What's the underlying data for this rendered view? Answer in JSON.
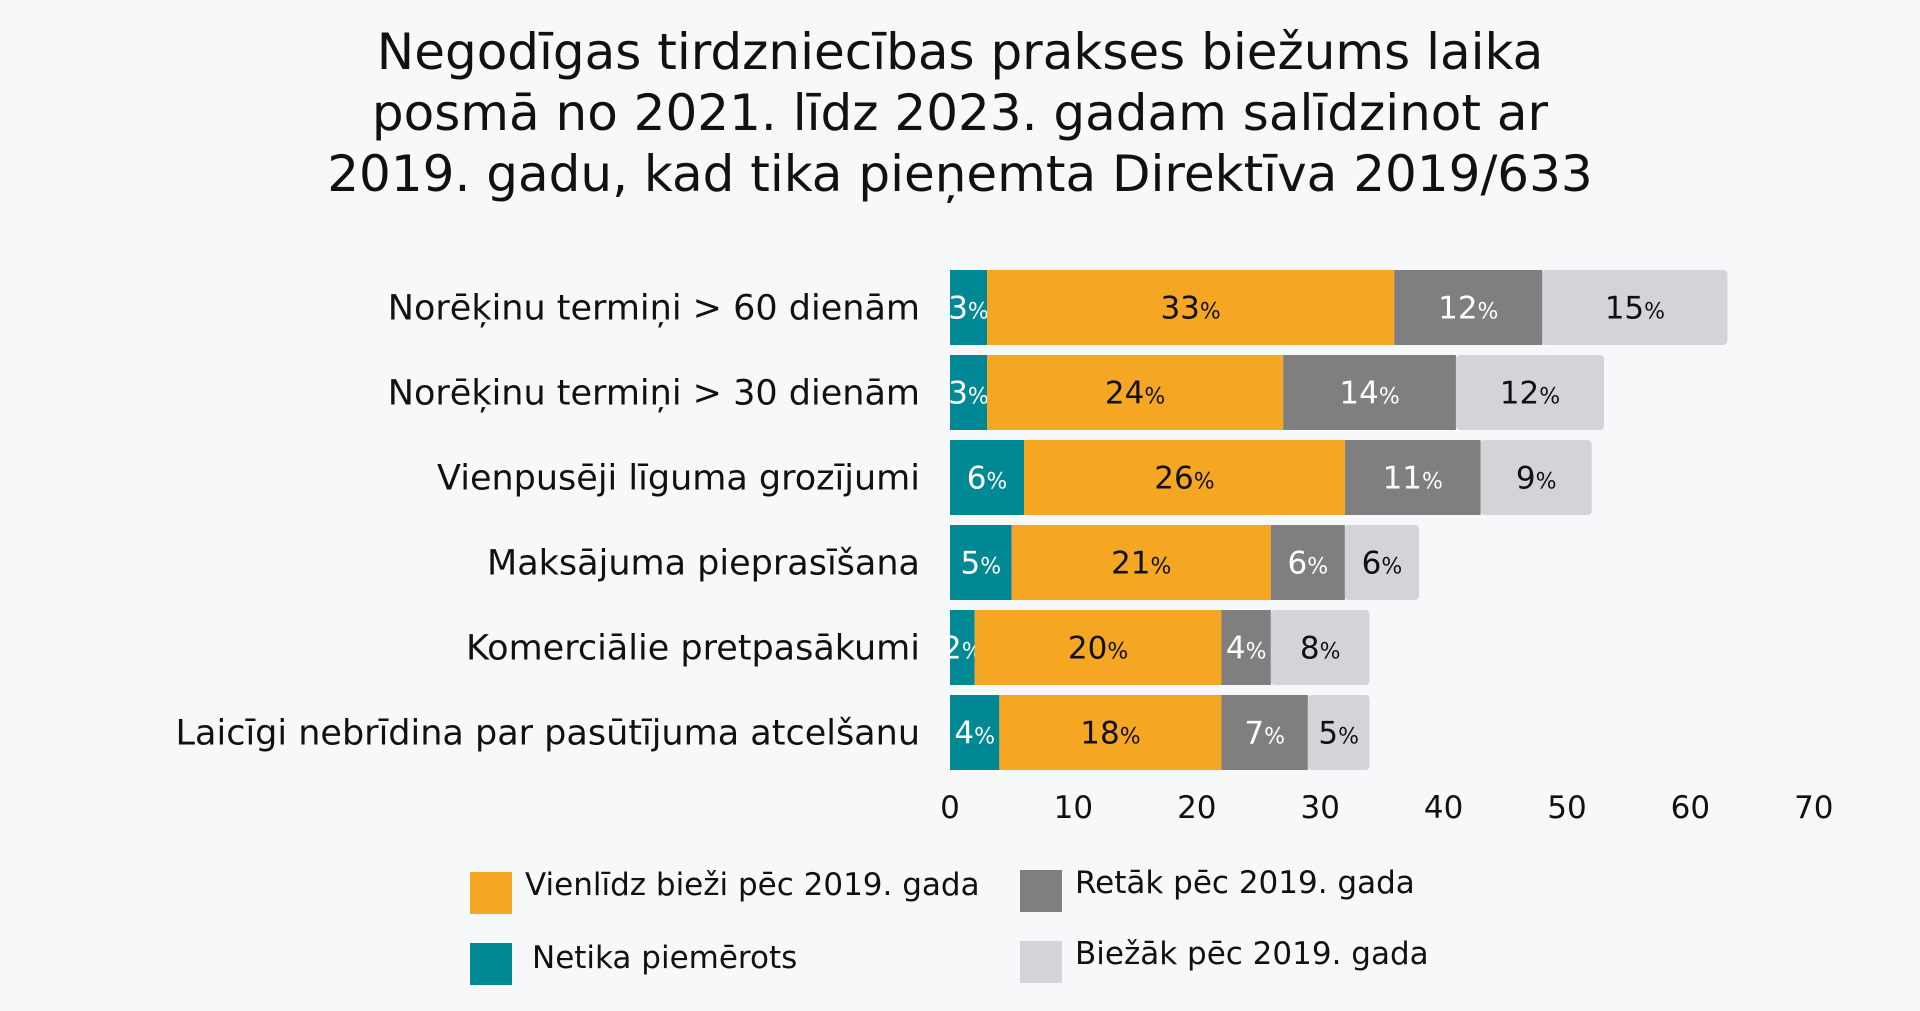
{
  "chart_data": {
    "type": "bar",
    "orientation": "horizontal",
    "stacked": true,
    "title": "Negodīgas tirdzniecības prakses biežums laika posmā no 2021. līdz 2023. gadam salīdzinot ar 2019. gadu, kad tika pieņemta Direktīva 2019/633",
    "title_lines": [
      "Negodīgas tirdzniecības prakses biežums laika",
      "posmā no 2021. līdz 2023. gadam salīdzinot ar",
      "2019. gadu, kad tika pieņemta Direktīva 2019/633"
    ],
    "xlabel": "",
    "ylabel": "",
    "xlim": [
      0,
      70
    ],
    "xticks": [
      "0",
      "10",
      "20",
      "30",
      "40",
      "50",
      "60",
      "70"
    ],
    "grid": false,
    "legend_position": "bottom",
    "value_suffix": "%",
    "categories": [
      "Norēķinu termiņi > 60 dienām",
      "Norēķinu termiņi > 30 dienām",
      "Vienpusēji līguma grozījumi",
      "Maksājuma pieprasīšana",
      "Komerciālie pretpasākumi",
      "Laicīgi nebrīdina par pasūtījuma atcelšanu"
    ],
    "series": [
      {
        "name": "Netika piemērots",
        "color": "#008995",
        "label_color": "#ffffff",
        "values": [
          3,
          3,
          6,
          5,
          2,
          4
        ],
        "labels": [
          "3",
          "3",
          "6",
          "5",
          "2",
          "4"
        ]
      },
      {
        "name": "Vienlīdz bieži pēc 2019. gada",
        "color": "#f5a623",
        "label_color": "#111111",
        "values": [
          33,
          24,
          26,
          21,
          20,
          18
        ],
        "labels": [
          "33",
          "24",
          "26",
          "21",
          "20",
          "18"
        ]
      },
      {
        "name": "Retāk pēc 2019. gada",
        "color": "#7f7f7f",
        "label_color": "#ffffff",
        "values": [
          12,
          14,
          11,
          6,
          4,
          7
        ],
        "labels": [
          "12",
          "14",
          "11",
          "6",
          "4",
          "7"
        ]
      },
      {
        "name": "Biežāk pēc 2019. gada",
        "color": "#d3d4d7",
        "label_color": "#111111",
        "values": [
          15,
          12,
          9,
          6,
          8,
          5
        ],
        "labels": [
          "15",
          "12",
          "9",
          "6",
          "8",
          "5"
        ]
      }
    ],
    "legend_order": [
      1,
      2,
      0,
      3
    ]
  }
}
